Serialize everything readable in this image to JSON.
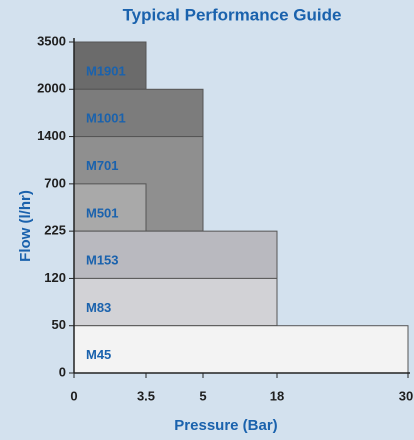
{
  "chart_data": {
    "type": "range-bar",
    "title": "Typical Performance Guide",
    "x_label": "Pressure (Bar)",
    "y_label": "Flow (l/hr)",
    "xticks": [
      0,
      3.5,
      5,
      18,
      30
    ],
    "yticks": [
      0,
      50,
      120,
      225,
      700,
      1400,
      2000,
      3500
    ],
    "xlim": [
      0,
      30
    ],
    "ylim": [
      0,
      3500
    ],
    "series": [
      {
        "name": "M1901",
        "color": "#6b6b6b",
        "flow": [
          2000,
          3500
        ],
        "pressure": 3.5
      },
      {
        "name": "M1001",
        "color": "#7c7c7c",
        "flow": [
          1400,
          2000
        ],
        "pressure": 5
      },
      {
        "name": "M701",
        "color": "#8f8f8f",
        "flow": [
          225,
          1400
        ],
        "pressure": 5
      },
      {
        "name": "M501",
        "color": "#a9a9a9",
        "flow": [
          225,
          700
        ],
        "pressure": 3.5
      },
      {
        "name": "M153",
        "color": "#b9b9bf",
        "flow": [
          120,
          225
        ],
        "pressure": 18
      },
      {
        "name": "M83",
        "color": "#d2d2d6",
        "flow": [
          50,
          120
        ],
        "pressure": 18
      },
      {
        "name": "M45",
        "color": "#f3f3f3",
        "flow": [
          0,
          50
        ],
        "pressure": 30
      }
    ]
  }
}
